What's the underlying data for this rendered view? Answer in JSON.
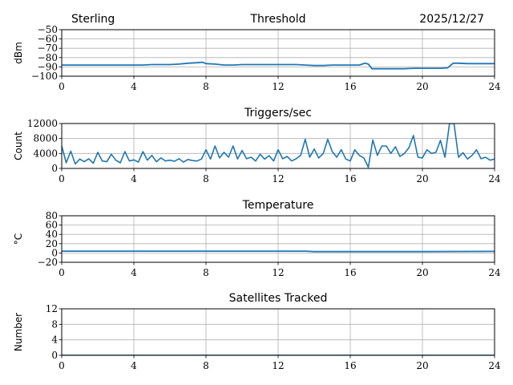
{
  "header": {
    "station": "Sterling",
    "date": "2025/12/27"
  },
  "chart_data": [
    {
      "type": "line",
      "title": "Threshold",
      "ylabel": "dBm",
      "xlim": [
        0,
        24
      ],
      "ylim": [
        -100,
        -50
      ],
      "xticks": [
        0,
        4,
        8,
        12,
        16,
        20,
        24
      ],
      "yticks": [
        -100,
        -90,
        -80,
        -70,
        -60,
        -50
      ],
      "ytick_labels": [
        "−100",
        "−90",
        "−80",
        "−70",
        "−60",
        "−50"
      ],
      "grid": true,
      "color": "#1f77b4",
      "x": [
        0,
        0.5,
        1,
        1.5,
        2,
        2.5,
        3,
        3.5,
        4,
        4.5,
        5,
        5.5,
        6,
        6.5,
        7,
        7.5,
        7.8,
        8,
        8.5,
        9,
        9.5,
        10,
        10.5,
        11,
        11.5,
        12,
        12.5,
        13,
        13.5,
        14,
        14.5,
        15,
        15.5,
        16,
        16.5,
        16.8,
        17,
        17.2,
        17.5,
        18,
        18.5,
        19,
        19.5,
        20,
        20.5,
        21,
        21.4,
        21.7,
        22,
        22.5,
        23,
        23.5,
        24
      ],
      "values": [
        -88,
        -88,
        -88,
        -88,
        -88,
        -88,
        -88,
        -88,
        -88,
        -88,
        -87.5,
        -87.5,
        -87.5,
        -87,
        -86,
        -85.5,
        -85,
        -86.5,
        -87,
        -88,
        -88,
        -87.5,
        -87.5,
        -87.5,
        -87.5,
        -87.5,
        -87.5,
        -87.5,
        -88,
        -88.5,
        -88.5,
        -88,
        -88,
        -88,
        -88,
        -86,
        -87,
        -92,
        -92,
        -92,
        -92,
        -92,
        -91.5,
        -91.5,
        -91.5,
        -91.5,
        -91,
        -86,
        -86,
        -86.5,
        -86.5,
        -86.5,
        -86.5
      ]
    },
    {
      "type": "line",
      "title": "Triggers/sec",
      "ylabel": "Count",
      "xlim": [
        0,
        24
      ],
      "ylim": [
        0,
        12000
      ],
      "xticks": [
        0,
        4,
        8,
        12,
        16,
        20,
        24
      ],
      "yticks": [
        0,
        4000,
        8000,
        12000
      ],
      "ytick_labels": [
        "0",
        "4000",
        "8000",
        "12000"
      ],
      "grid": true,
      "color": "#1f77b4",
      "x_step_hours": 0.25,
      "values": [
        6000,
        1500,
        4600,
        1200,
        2500,
        1800,
        2600,
        1400,
        4300,
        2000,
        1800,
        3800,
        2200,
        1500,
        4500,
        2000,
        2300,
        1700,
        4500,
        2200,
        3500,
        1800,
        2800,
        2000,
        2200,
        1900,
        2600,
        1700,
        2400,
        2100,
        2000,
        2500,
        5000,
        2500,
        6000,
        2800,
        4300,
        3000,
        6000,
        2500,
        4800,
        2600,
        3000,
        2000,
        3800,
        2500,
        3400,
        2000,
        5000,
        2600,
        3200,
        2000,
        2600,
        3500,
        7800,
        3000,
        5200,
        2800,
        4000,
        7800,
        4500,
        3000,
        5000,
        2500,
        2000,
        5000,
        3500,
        2800,
        300,
        7600,
        3500,
        6000,
        6000,
        4000,
        5800,
        3200,
        4000,
        5500,
        8800,
        3000,
        2800,
        5000,
        4000,
        4300,
        7500,
        3000,
        12000,
        12000,
        3000,
        4200,
        2500,
        3500,
        5000,
        2600,
        3000,
        2200,
        2500
      ]
    },
    {
      "type": "line",
      "title": "Temperature",
      "ylabel": "°C",
      "xlim": [
        0,
        24
      ],
      "ylim": [
        -20,
        80
      ],
      "xticks": [
        0,
        4,
        8,
        12,
        16,
        20,
        24
      ],
      "yticks": [
        -20,
        0,
        20,
        40,
        60,
        80
      ],
      "ytick_labels": [
        "−20",
        "0",
        "20",
        "40",
        "60",
        "80"
      ],
      "grid": true,
      "color": "#1f77b4",
      "x": [
        0,
        4,
        8,
        12,
        13.5,
        14,
        16,
        20,
        24
      ],
      "values": [
        4,
        4,
        4,
        4,
        4,
        3,
        3,
        3,
        3.5
      ]
    },
    {
      "type": "line",
      "title": "Satellites Tracked",
      "ylabel": "Number",
      "xlim": [
        0,
        24
      ],
      "ylim": [
        0,
        12
      ],
      "xticks": [
        0,
        4,
        8,
        12,
        16,
        20,
        24
      ],
      "yticks": [
        0,
        4,
        8,
        12
      ],
      "ytick_labels": [
        "0",
        "4",
        "8",
        "12"
      ],
      "grid": true,
      "color": "#1f77b4",
      "x": [
        0,
        24
      ],
      "values": [
        0,
        0
      ]
    }
  ]
}
